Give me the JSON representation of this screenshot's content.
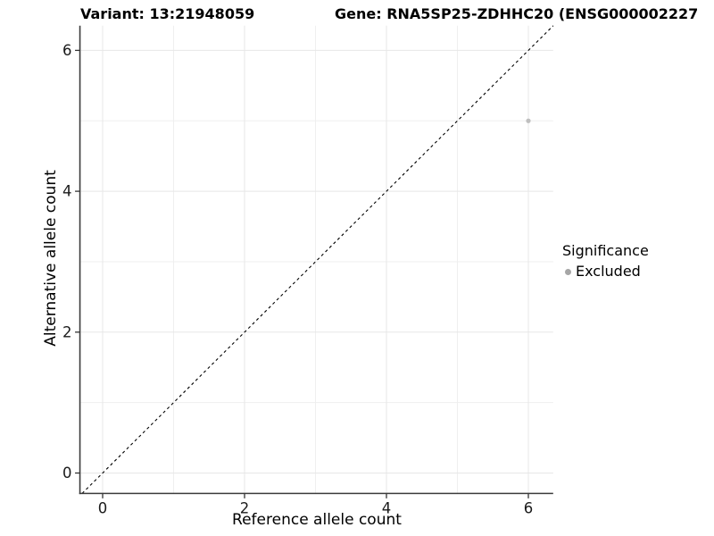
{
  "header": {
    "title_left": "Variant: 13:21948059",
    "title_right": "Gene: RNA5SP25-ZDHHC20 (ENSG000002227"
  },
  "chart_data": {
    "type": "scatter",
    "xlabel": "Reference allele count",
    "ylabel": "Alternative allele count",
    "x_ticks": [
      0,
      2,
      4,
      6
    ],
    "y_ticks": [
      0,
      2,
      4,
      6
    ],
    "minor_ticks": [
      1,
      3,
      5
    ],
    "xlim": [
      -0.32,
      6.35
    ],
    "ylim": [
      -0.29,
      6.35
    ],
    "grid": "major and minor gridlines on white panel, left and bottom axis lines only",
    "points": [
      {
        "x": 6,
        "y": 5,
        "series": "Excluded",
        "color": "#bfbfbf"
      }
    ],
    "reference_line": {
      "type": "abline",
      "slope": 1,
      "intercept": 0,
      "style": "dashed",
      "color": "#000000"
    },
    "legend": {
      "title": "Significance",
      "position": "right-middle",
      "items": [
        {
          "label": "Excluded",
          "marker": "circle",
          "color": "#a6a6a6"
        }
      ]
    },
    "colors": {
      "grid_major": "#e7e7e7",
      "grid_minor": "#efefef",
      "axis_line": "#3c3c3c",
      "tick_mark": "#333333",
      "tick_text": "#1a1a1a"
    }
  }
}
